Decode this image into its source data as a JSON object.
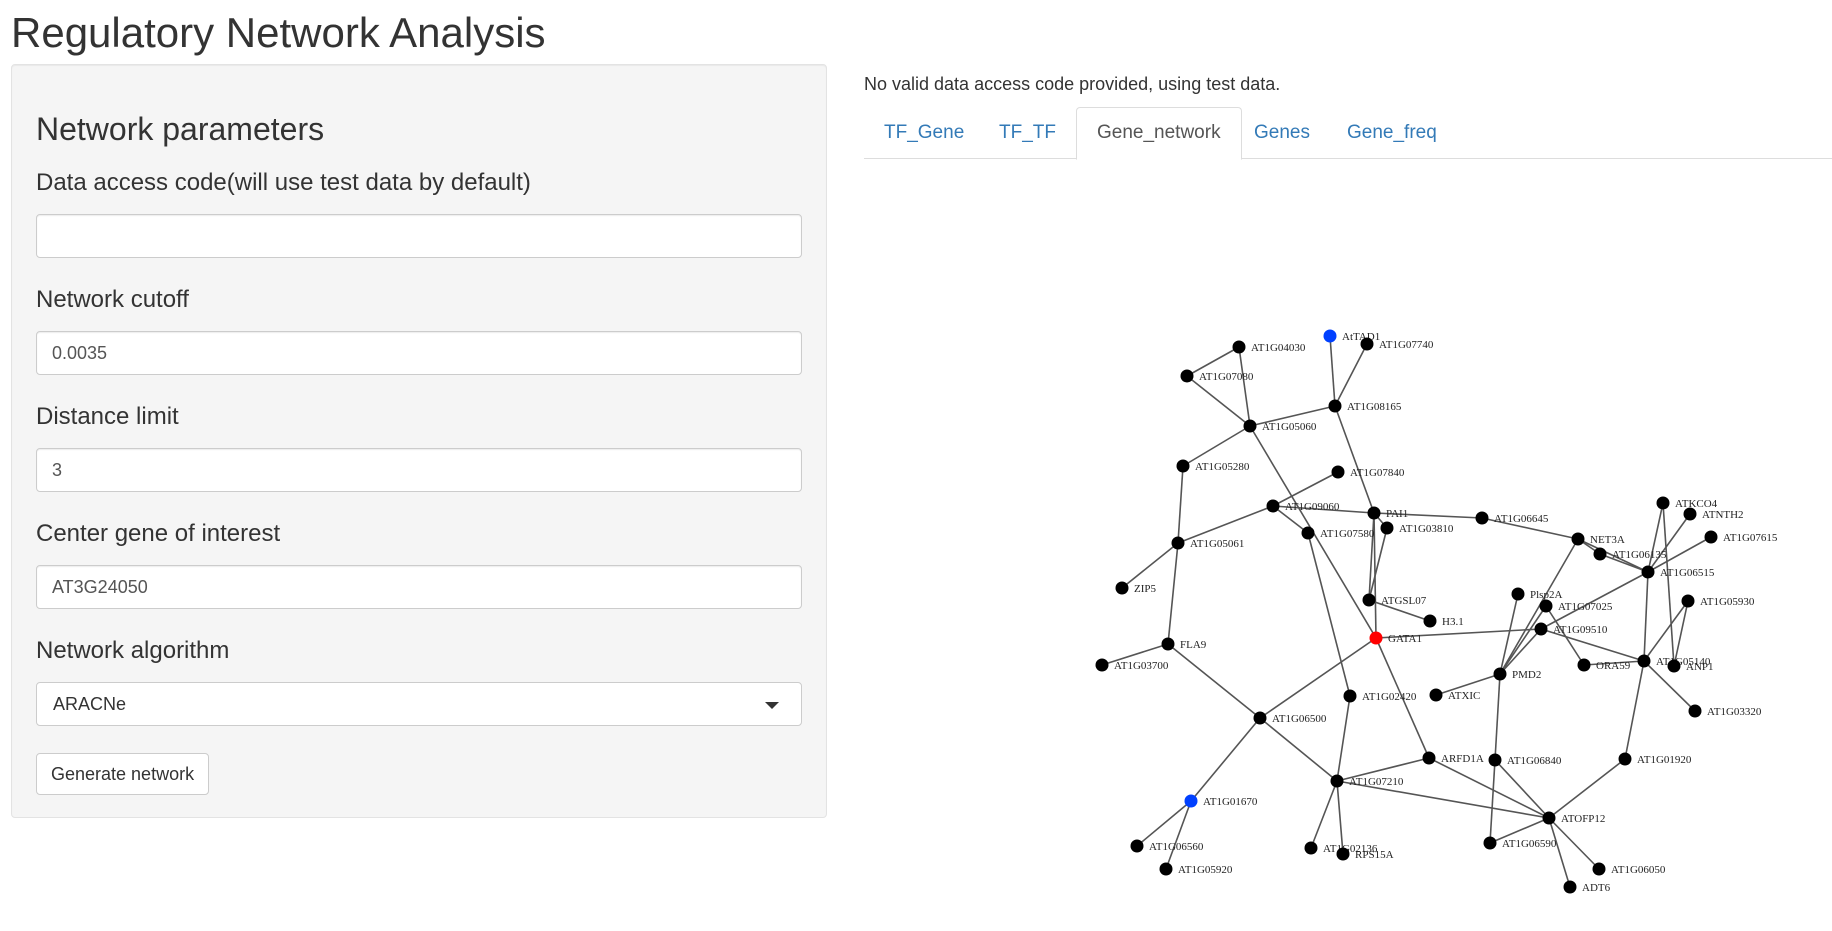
{
  "app": {
    "title": "Regulatory Network Analysis"
  },
  "sidebar": {
    "heading": "Network parameters",
    "access_code": {
      "label": "Data access code(will use test data by default)",
      "value": ""
    },
    "cutoff": {
      "label": "Network cutoff",
      "value": "0.0035"
    },
    "distance": {
      "label": "Distance limit",
      "value": "3"
    },
    "center_gene": {
      "label": "Center gene of interest",
      "value": "AT3G24050"
    },
    "algorithm": {
      "label": "Network algorithm",
      "value": "ARACNe"
    },
    "generate_label": "Generate network"
  },
  "main": {
    "notice": "No valid data access code provided, using test data.",
    "tabs": [
      {
        "label": "TF_Gene",
        "active": false
      },
      {
        "label": "TF_TF",
        "active": false
      },
      {
        "label": "Gene_network",
        "active": true
      },
      {
        "label": "Genes",
        "active": false
      },
      {
        "label": "Gene_freq",
        "active": false
      }
    ]
  },
  "network": {
    "colors": {
      "default": "#000000",
      "center": "#ff0000",
      "highlight": "#0040ff",
      "edge": "#555555"
    },
    "nodes": [
      {
        "id": "AtTAD1",
        "color": "highlight"
      },
      {
        "id": "AT1G07740"
      },
      {
        "id": "AT1G04030"
      },
      {
        "id": "AT1G07080"
      },
      {
        "id": "AT1G08165"
      },
      {
        "id": "AT1G05060"
      },
      {
        "id": "AT1G05280"
      },
      {
        "id": "AT1G07840"
      },
      {
        "id": "AT1G09060"
      },
      {
        "id": "PAI1"
      },
      {
        "id": "AT1G07580"
      },
      {
        "id": "AT1G03810"
      },
      {
        "id": "AT1G06645"
      },
      {
        "id": "AT1G05061"
      },
      {
        "id": "ZIP5"
      },
      {
        "id": "ATGSL07"
      },
      {
        "id": "H3.1"
      },
      {
        "id": "GATA1",
        "color": "center"
      },
      {
        "id": "FLA9"
      },
      {
        "id": "AT1G03700"
      },
      {
        "id": "AT1G06500"
      },
      {
        "id": "AT1G02420"
      },
      {
        "id": "ATXIC"
      },
      {
        "id": "PMD2"
      },
      {
        "id": "Plsp2A"
      },
      {
        "id": "AT1G07025"
      },
      {
        "id": "AT1G09510"
      },
      {
        "id": "ORA59"
      },
      {
        "id": "NET3A"
      },
      {
        "id": "AT1G06135"
      },
      {
        "id": "AT1G06515"
      },
      {
        "id": "ATKCO4"
      },
      {
        "id": "ATNTH2"
      },
      {
        "id": "AT1G07615"
      },
      {
        "id": "AT1G05930"
      },
      {
        "id": "AT1G05140"
      },
      {
        "id": "ANP1"
      },
      {
        "id": "AT1G03320"
      },
      {
        "id": "AT1G01920"
      },
      {
        "id": "ARFD1A"
      },
      {
        "id": "AT1G06840"
      },
      {
        "id": "AT1G07210"
      },
      {
        "id": "AT1G01670",
        "color": "highlight"
      },
      {
        "id": "AT1G06560"
      },
      {
        "id": "AT1G05920"
      },
      {
        "id": "AT1G02136"
      },
      {
        "id": "RPS15A"
      },
      {
        "id": "ATOFP12"
      },
      {
        "id": "AT1G06590"
      },
      {
        "id": "AT1G06050"
      },
      {
        "id": "ADT6"
      }
    ],
    "edges": [
      [
        "AtTAD1",
        "AT1G08165"
      ],
      [
        "AT1G07740",
        "AT1G08165"
      ],
      [
        "AT1G04030",
        "AT1G07080"
      ],
      [
        "AT1G04030",
        "AT1G05060"
      ],
      [
        "AT1G07080",
        "AT1G05060"
      ],
      [
        "AT1G08165",
        "AT1G05060"
      ],
      [
        "AT1G08165",
        "PAI1"
      ],
      [
        "AT1G05060",
        "AT1G05280"
      ],
      [
        "AT1G05060",
        "GATA1"
      ],
      [
        "AT1G05280",
        "AT1G05061"
      ],
      [
        "AT1G07840",
        "AT1G09060"
      ],
      [
        "AT1G09060",
        "AT1G05061"
      ],
      [
        "AT1G09060",
        "PAI1"
      ],
      [
        "PAI1",
        "AT1G06645"
      ],
      [
        "PAI1",
        "AT1G03810"
      ],
      [
        "PAI1",
        "ATGSL07"
      ],
      [
        "PAI1",
        "GATA1"
      ],
      [
        "AT1G07580",
        "AT1G02420"
      ],
      [
        "AT1G05061",
        "ZIP5"
      ],
      [
        "AT1G05061",
        "FLA9"
      ],
      [
        "FLA9",
        "AT1G03700"
      ],
      [
        "FLA9",
        "AT1G06500"
      ],
      [
        "AT1G03810",
        "ATGSL07"
      ],
      [
        "ATGSL07",
        "H3.1"
      ],
      [
        "GATA1",
        "AT1G06500"
      ],
      [
        "GATA1",
        "ARFD1A"
      ],
      [
        "GATA1",
        "AT1G09510"
      ],
      [
        "AT1G06645",
        "NET3A"
      ],
      [
        "NET3A",
        "AT1G06135"
      ],
      [
        "NET3A",
        "AT1G06515"
      ],
      [
        "NET3A",
        "PMD2"
      ],
      [
        "AT1G06135",
        "AT1G06515"
      ],
      [
        "AT1G06515",
        "ATKCO4"
      ],
      [
        "AT1G06515",
        "ATNTH2"
      ],
      [
        "AT1G06515",
        "AT1G07615"
      ],
      [
        "AT1G06515",
        "AT1G05140"
      ],
      [
        "AT1G06515",
        "AT1G09510"
      ],
      [
        "AT1G05930",
        "AT1G05140"
      ],
      [
        "AT1G05930",
        "ANP1"
      ],
      [
        "ATKCO4",
        "ANP1"
      ],
      [
        "AT1G05140",
        "ORA59"
      ],
      [
        "AT1G05140",
        "AT1G03320"
      ],
      [
        "AT1G05140",
        "AT1G01920"
      ],
      [
        "AT1G09510",
        "AT1G05140"
      ],
      [
        "AT1G09510",
        "PMD2"
      ],
      [
        "Plsp2A",
        "PMD2"
      ],
      [
        "AT1G07025",
        "PMD2"
      ],
      [
        "AT1G07025",
        "ORA59"
      ],
      [
        "PMD2",
        "ATXIC"
      ],
      [
        "PMD2",
        "AT1G06840"
      ],
      [
        "AT1G06840",
        "AT1G06590"
      ],
      [
        "AT1G06840",
        "ATOFP12"
      ],
      [
        "ARFD1A",
        "AT1G07210"
      ],
      [
        "ARFD1A",
        "ATOFP12"
      ],
      [
        "AT1G06500",
        "AT1G07210"
      ],
      [
        "AT1G06500",
        "AT1G01670"
      ],
      [
        "AT1G01670",
        "AT1G06560"
      ],
      [
        "AT1G01670",
        "AT1G05920"
      ],
      [
        "AT1G07210",
        "AT1G02136"
      ],
      [
        "AT1G07210",
        "RPS15A"
      ],
      [
        "AT1G07210",
        "ATOFP12"
      ],
      [
        "AT1G02420",
        "AT1G07210"
      ],
      [
        "AT1G01920",
        "ATOFP12"
      ],
      [
        "ATOFP12",
        "AT1G06590"
      ],
      [
        "ATOFP12",
        "AT1G06050"
      ],
      [
        "ATOFP12",
        "ADT6"
      ],
      [
        "AT1G09060",
        "AT1G07580"
      ]
    ]
  }
}
